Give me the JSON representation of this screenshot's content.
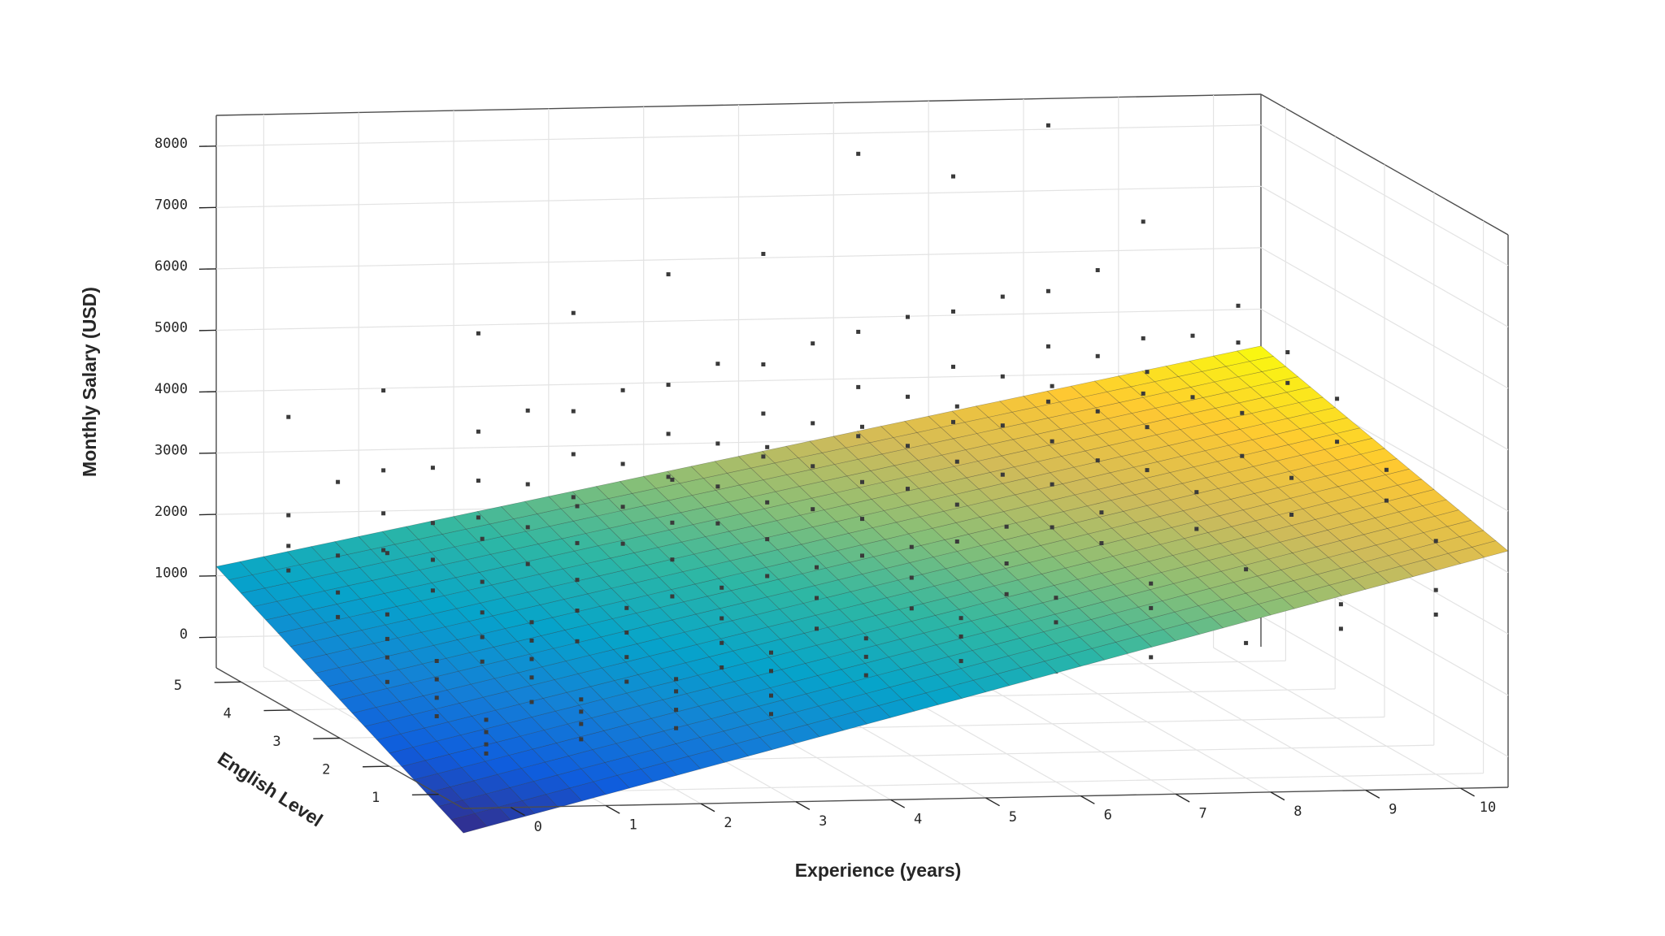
{
  "chart_data": {
    "type": "surface3d",
    "xlabel": "Experience (years)",
    "ylabel": "English Level",
    "zlabel": "Monthly Salary (USD)",
    "x_ticks": [
      "0",
      "1",
      "2",
      "3",
      "4",
      "5",
      "6",
      "7",
      "8",
      "9",
      "10"
    ],
    "y_ticks": [
      "1",
      "2",
      "3",
      "4",
      "5"
    ],
    "z_ticks": [
      "0",
      "1000",
      "2000",
      "3000",
      "4000",
      "5000",
      "6000",
      "7000",
      "8000"
    ],
    "xlim": [
      -0.5,
      10.5
    ],
    "ylim": [
      0.5,
      5.5
    ],
    "zlim": [
      -500,
      8500
    ],
    "grid": true,
    "colormap": [
      "#352a87",
      "#0f5cdd",
      "#1481d6",
      "#06a4ca",
      "#2eb7a4",
      "#87bf77",
      "#d1bb59",
      "#fec832",
      "#f9fb0e"
    ],
    "surface": {
      "description_formula": "salary = a + b*experience + c*english",
      "corners": [
        {
          "experience": -0.5,
          "english": 0.5,
          "salary": -900
        },
        {
          "experience": 10.5,
          "english": 0.5,
          "salary": 3350
        },
        {
          "experience": -0.5,
          "english": 5.5,
          "salary": 1150
        },
        {
          "experience": 10.5,
          "english": 5.5,
          "salary": 4400
        }
      ]
    },
    "scatter_points_note_free": true,
    "scatter_columns": [
      {
        "experience": 0,
        "english": 1,
        "salary": [
          150,
          300,
          500,
          700
        ]
      },
      {
        "experience": 0,
        "english": 2,
        "salary": [
          300,
          600,
          900,
          1200
        ]
      },
      {
        "experience": 0,
        "english": 3,
        "salary": [
          400,
          800,
          1100,
          1500,
          2500
        ]
      },
      {
        "experience": 0,
        "english": 4,
        "salary": [
          600,
          1000,
          1400,
          2000,
          3200
        ]
      },
      {
        "experience": 0,
        "english": 5,
        "salary": [
          800,
          1300,
          1700,
          2200,
          3800
        ]
      },
      {
        "experience": 1,
        "english": 1,
        "salary": [
          350,
          600,
          800,
          1000
        ]
      },
      {
        "experience": 1,
        "english": 2,
        "salary": [
          500,
          900,
          1200,
          1500,
          1800
        ]
      },
      {
        "experience": 1,
        "english": 3,
        "salary": [
          700,
          1100,
          1500,
          2000,
          2700
        ]
      },
      {
        "experience": 1,
        "english": 4,
        "salary": [
          900,
          1400,
          1900,
          2500,
          3400
        ]
      },
      {
        "experience": 1,
        "english": 5,
        "salary": [
          1000,
          1600,
          2200,
          2900,
          4200
        ]
      },
      {
        "experience": 2,
        "english": 1,
        "salary": [
          500,
          800,
          1100,
          1300
        ]
      },
      {
        "experience": 2,
        "english": 2,
        "salary": [
          800,
          1200,
          1600,
          2000
        ]
      },
      {
        "experience": 2,
        "english": 3,
        "salary": [
          1000,
          1500,
          2000,
          2600,
          3200
        ]
      },
      {
        "experience": 2,
        "english": 4,
        "salary": [
          1200,
          1800,
          2400,
          3100,
          4300
        ]
      },
      {
        "experience": 2,
        "english": 5,
        "salary": [
          1400,
          2100,
          2700,
          3500,
          5100
        ]
      },
      {
        "experience": 3,
        "english": 1,
        "salary": [
          700,
          1000,
          1400,
          1700
        ]
      },
      {
        "experience": 3,
        "english": 2,
        "salary": [
          1000,
          1400,
          1800,
          2300
        ]
      },
      {
        "experience": 3,
        "english": 3,
        "salary": [
          1200,
          1700,
          2300,
          2900,
          3600
        ]
      },
      {
        "experience": 3,
        "english": 4,
        "salary": [
          1500,
          2100,
          2700,
          3400,
          4600
        ]
      },
      {
        "experience": 3,
        "english": 5,
        "salary": [
          1700,
          2400,
          3100,
          3800,
          5400
        ]
      },
      {
        "experience": 4,
        "english": 1,
        "salary": [
          900,
          1300,
          1600,
          1900
        ]
      },
      {
        "experience": 4,
        "english": 2,
        "salary": [
          1200,
          1600,
          2100,
          2600
        ]
      },
      {
        "experience": 4,
        "english": 3,
        "salary": [
          1500,
          2000,
          2600,
          3200,
          4100
        ]
      },
      {
        "experience": 4,
        "english": 4,
        "salary": [
          1800,
          2400,
          3000,
          3700,
          5000
        ]
      },
      {
        "experience": 4,
        "english": 5,
        "salary": [
          2000,
          2700,
          3400,
          4200,
          6000
        ]
      },
      {
        "experience": 5,
        "english": 1,
        "salary": [
          1100,
          1500,
          1900,
          2200
        ]
      },
      {
        "experience": 5,
        "english": 2,
        "salary": [
          1400,
          1900,
          2400,
          2900
        ]
      },
      {
        "experience": 5,
        "english": 3,
        "salary": [
          1700,
          2300,
          2900,
          3500,
          4400
        ]
      },
      {
        "experience": 5,
        "english": 4,
        "salary": [
          2000,
          2600,
          3300,
          4000,
          5300
        ]
      },
      {
        "experience": 5,
        "english": 5,
        "salary": [
          2300,
          3000,
          3700,
          4500,
          6300
        ]
      },
      {
        "experience": 6,
        "english": 1,
        "salary": [
          1300,
          1700,
          2100,
          2500
        ]
      },
      {
        "experience": 6,
        "english": 2,
        "salary": [
          1600,
          2100,
          2600,
          3200
        ]
      },
      {
        "experience": 6,
        "english": 3,
        "salary": [
          1900,
          2500,
          3100,
          3800,
          4700
        ]
      },
      {
        "experience": 6,
        "english": 4,
        "salary": [
          2200,
          2900,
          3600,
          4400,
          5700
        ]
      },
      {
        "experience": 6,
        "english": 5,
        "salary": [
          2500,
          3300,
          4100,
          5000,
          7900
        ]
      },
      {
        "experience": 7,
        "english": 1,
        "salary": [
          1500,
          1900,
          2300,
          2700
        ]
      },
      {
        "experience": 7,
        "english": 2,
        "salary": [
          1800,
          2300,
          2900,
          3400
        ]
      },
      {
        "experience": 7,
        "english": 3,
        "salary": [
          2100,
          2700,
          3400,
          4100,
          5000
        ]
      },
      {
        "experience": 7,
        "english": 4,
        "salary": [
          2400,
          3100,
          3900,
          4700,
          6000
        ]
      },
      {
        "experience": 7,
        "english": 5,
        "salary": [
          2700,
          3500,
          4400,
          5300,
          7500
        ]
      },
      {
        "experience": 8,
        "english": 1,
        "salary": [
          1700,
          2100,
          2500,
          2900
        ]
      },
      {
        "experience": 8,
        "english": 2,
        "salary": [
          2000,
          2500,
          3100,
          3700
        ]
      },
      {
        "experience": 8,
        "english": 3,
        "salary": [
          2300,
          2900,
          3600,
          4300,
          5200
        ]
      },
      {
        "experience": 8,
        "english": 4,
        "salary": [
          2600,
          3300,
          4100,
          5000,
          6400
        ]
      },
      {
        "experience": 8,
        "english": 5,
        "salary": [
          2900,
          3800,
          4700,
          5600,
          8300
        ]
      },
      {
        "experience": 9,
        "english": 1,
        "salary": [
          1900,
          2300,
          2700
        ]
      },
      {
        "experience": 9,
        "english": 2,
        "salary": [
          2200,
          2700,
          3300,
          3900
        ]
      },
      {
        "experience": 9,
        "english": 3,
        "salary": [
          2500,
          3100,
          3800,
          4500
        ]
      },
      {
        "experience": 9,
        "english": 4,
        "salary": [
          2800,
          3500,
          4300,
          5300
        ]
      },
      {
        "experience": 9,
        "english": 5,
        "salary": [
          3100,
          3900,
          4800,
          6700
        ]
      },
      {
        "experience": 10,
        "english": 1,
        "salary": [
          2100,
          2500,
          2900,
          3300
        ]
      },
      {
        "experience": 10,
        "english": 2,
        "salary": [
          2400,
          2900,
          3500,
          4000
        ]
      },
      {
        "experience": 10,
        "english": 3,
        "salary": [
          2700,
          3300,
          4000,
          4700
        ]
      },
      {
        "experience": 10,
        "english": 4,
        "salary": [
          3000,
          3700,
          4500,
          5000
        ]
      },
      {
        "experience": 10,
        "english": 5,
        "salary": [
          3300,
          4000,
          4700,
          5300
        ]
      }
    ]
  }
}
